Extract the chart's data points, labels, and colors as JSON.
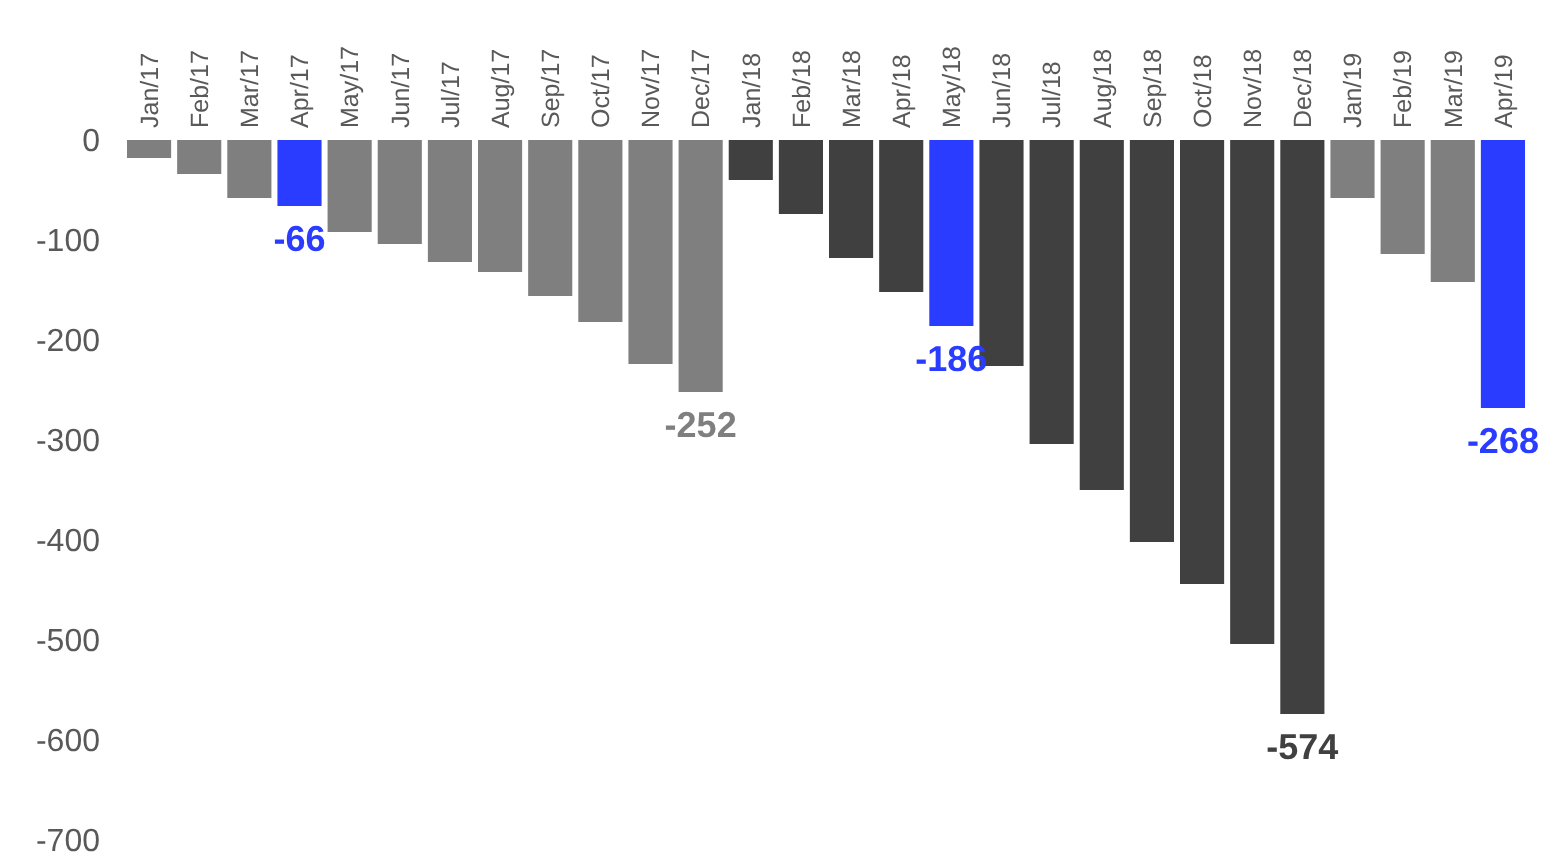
{
  "chart_data": {
    "type": "bar",
    "categories": [
      "Jan/17",
      "Feb/17",
      "Mar/17",
      "Apr/17",
      "May/17",
      "Jun/17",
      "Jul/17",
      "Aug/17",
      "Sep/17",
      "Oct/17",
      "Nov/17",
      "Dec/17",
      "Jan/18",
      "Feb/18",
      "Mar/18",
      "Apr/18",
      "May/18",
      "Jun/18",
      "Jul/18",
      "Aug/18",
      "Sep/18",
      "Oct/18",
      "Nov/18",
      "Dec/18",
      "Jan/19",
      "Feb/19",
      "Mar/19",
      "Apr/19"
    ],
    "values": [
      -18,
      -34,
      -58,
      -66,
      -92,
      -104,
      -122,
      -132,
      -156,
      -182,
      -224,
      -252,
      -40,
      -74,
      -118,
      -152,
      -186,
      -226,
      -304,
      -350,
      -402,
      -444,
      -504,
      -574,
      -58,
      -114,
      -142,
      -268
    ],
    "colors": [
      "#7f7f7f",
      "#7f7f7f",
      "#7f7f7f",
      "#2a3cff",
      "#7f7f7f",
      "#7f7f7f",
      "#7f7f7f",
      "#7f7f7f",
      "#7f7f7f",
      "#7f7f7f",
      "#7f7f7f",
      "#7f7f7f",
      "#404040",
      "#404040",
      "#404040",
      "#404040",
      "#2a3cff",
      "#404040",
      "#404040",
      "#404040",
      "#404040",
      "#404040",
      "#404040",
      "#404040",
      "#7f7f7f",
      "#7f7f7f",
      "#7f7f7f",
      "#2a3cff"
    ],
    "value_labels": [
      null,
      null,
      null,
      "-66",
      null,
      null,
      null,
      null,
      null,
      null,
      null,
      "-252",
      null,
      null,
      null,
      null,
      "-186",
      null,
      null,
      null,
      null,
      null,
      null,
      "-574",
      null,
      null,
      null,
      "-268"
    ],
    "ylim": [
      -700,
      0
    ],
    "yticks": [
      0,
      -100,
      -200,
      -300,
      -400,
      -500,
      -600,
      -700
    ],
    "grid": false
  }
}
